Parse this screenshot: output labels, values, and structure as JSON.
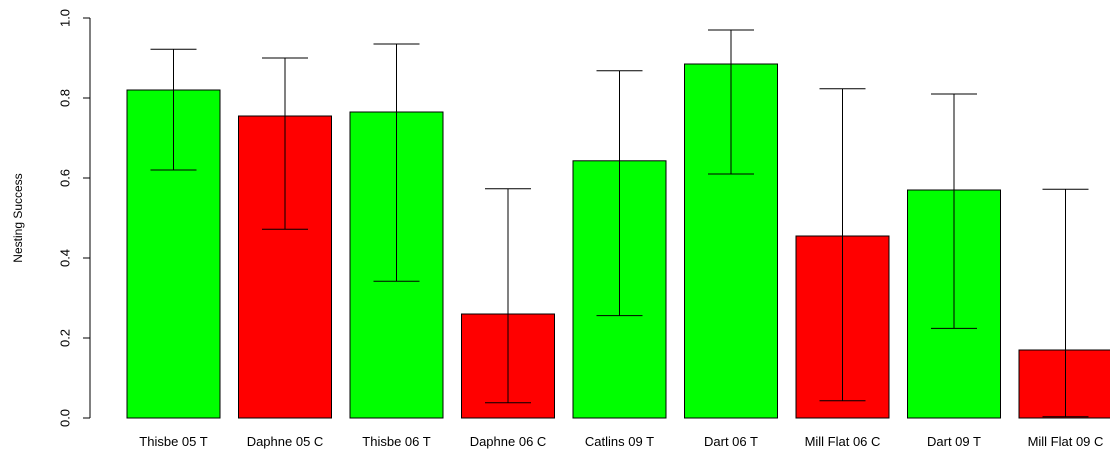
{
  "chart_data": {
    "type": "bar",
    "title": "",
    "xlabel": "",
    "ylabel": "Nesting Success",
    "ylim": [
      0,
      1
    ],
    "yticks": [
      "0.0",
      "0.2",
      "0.4",
      "0.6",
      "0.8",
      "1.0"
    ],
    "grid": false,
    "legend": "none",
    "categories": [
      "Thisbe 05 T",
      "Daphne 05 C",
      "Thisbe 06 T",
      "Daphne 06 C",
      "Catlins 09 T",
      "Dart 06 T",
      "Mill Flat 06 C",
      "Dart 09 T",
      "Mill Flat 09 C"
    ],
    "values": [
      0.82,
      0.755,
      0.765,
      0.26,
      0.643,
      0.885,
      0.455,
      0.57,
      0.17
    ],
    "error_lower": [
      0.62,
      0.472,
      0.342,
      0.038,
      0.256,
      0.61,
      0.043,
      0.224,
      0.003
    ],
    "error_upper": [
      0.922,
      0.9,
      0.935,
      0.573,
      0.868,
      0.97,
      0.823,
      0.81,
      0.572
    ],
    "bar_colors": [
      "#00ff00",
      "#ff0000",
      "#00ff00",
      "#ff0000",
      "#00ff00",
      "#00ff00",
      "#ff0000",
      "#00ff00",
      "#ff0000"
    ]
  }
}
